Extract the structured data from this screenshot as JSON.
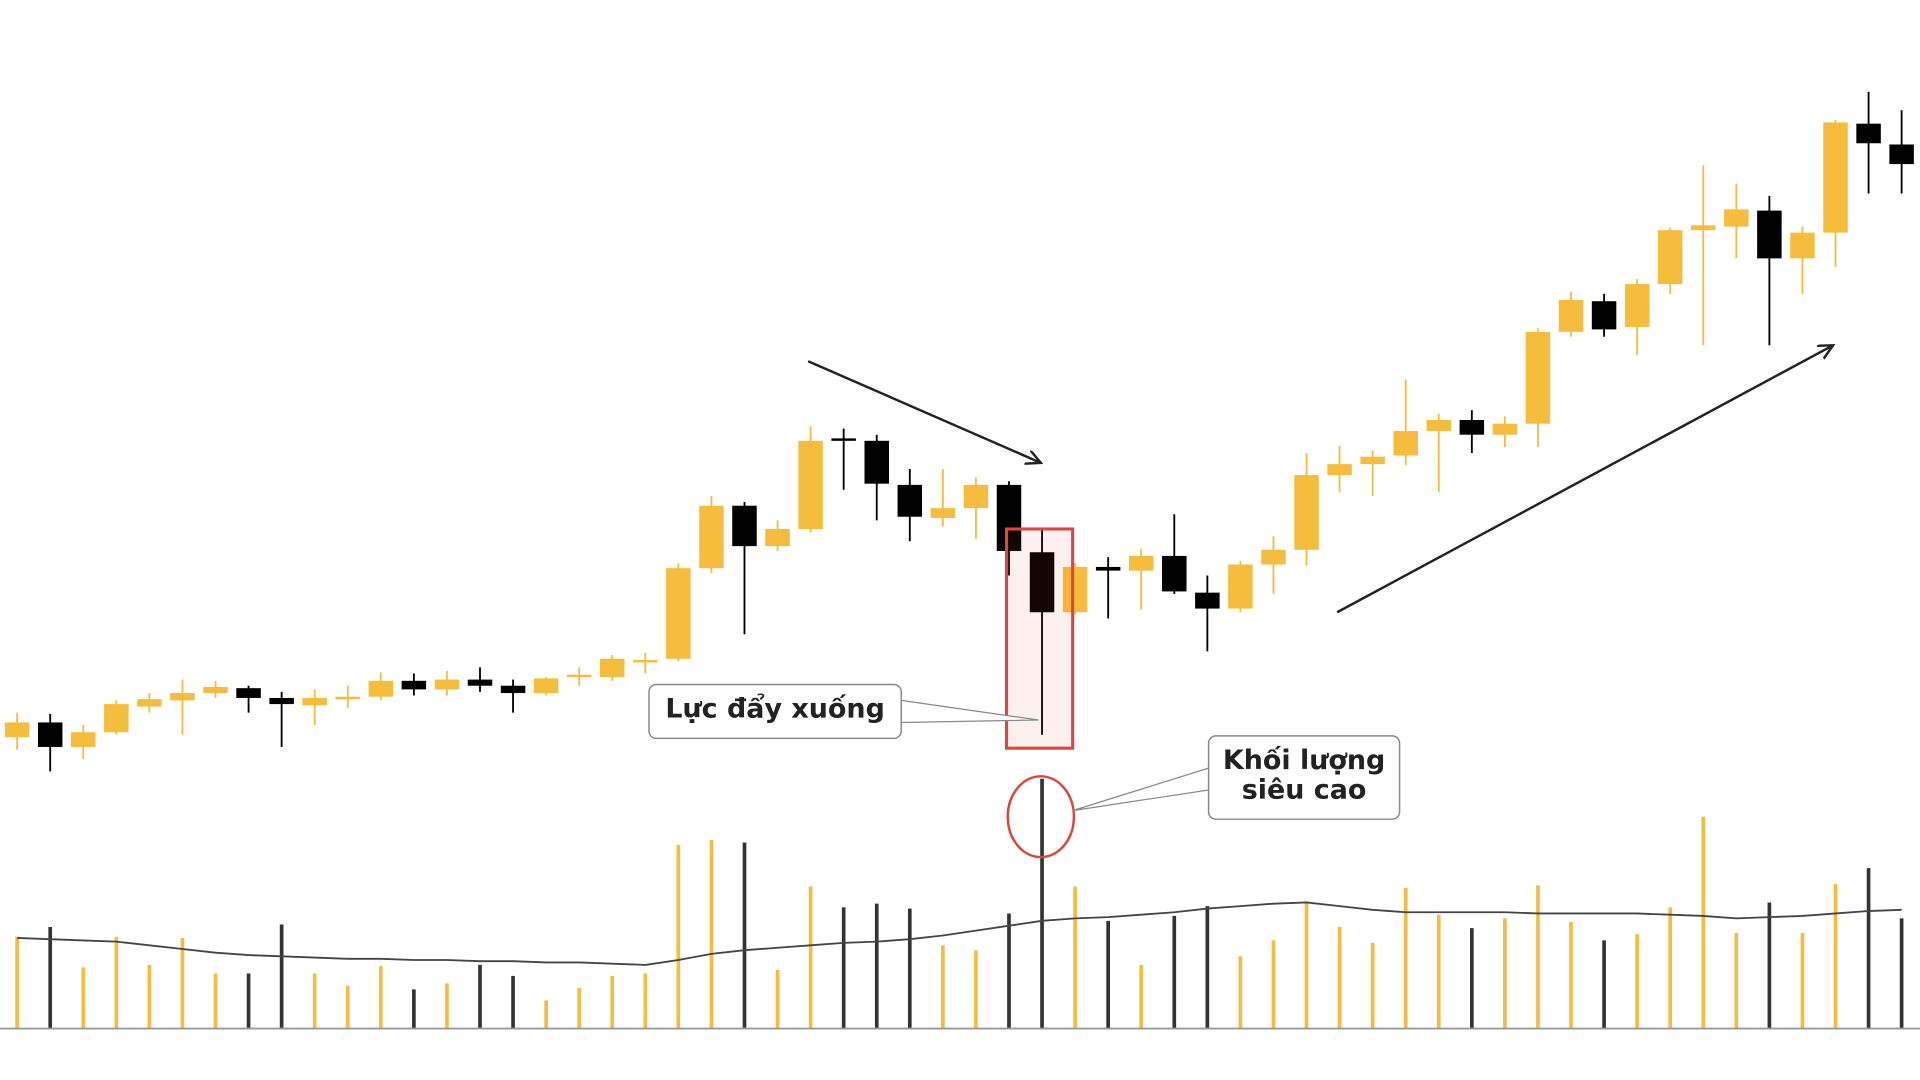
{
  "chart_data": {
    "type": "candlestick",
    "up_color": "#f5bd3b",
    "down_color": "#000000",
    "ma_color": "#444444",
    "ylim": [
      0,
      700
    ],
    "volume_ylim": [
      0,
      840
    ],
    "open": [
      98,
      110,
      90,
      102,
      123,
      128,
      134,
      138,
      130,
      124,
      129,
      131,
      144,
      137,
      145,
      140,
      134,
      147,
      147,
      159,
      162,
      236,
      287,
      254,
      268,
      342,
      340,
      304,
      277,
      285,
      304,
      249,
      200,
      237,
      234,
      246,
      216,
      203,
      239,
      251,
      312,
      321,
      328,
      348,
      357,
      345,
      354,
      429,
      454,
      433,
      468,
      512,
      515,
      528,
      489,
      510,
      599,
      582
    ],
    "high": [
      118,
      117,
      108,
      128,
      134,
      145,
      144,
      140,
      135,
      137,
      140,
      151,
      150,
      152,
      155,
      145,
      147,
      155,
      165,
      167,
      240,
      295,
      290,
      275,
      352,
      350,
      345,
      317,
      317,
      310,
      307,
      268,
      240,
      245,
      252,
      280,
      230,
      242,
      262,
      330,
      336,
      332,
      390,
      362,
      365,
      360,
      432,
      462,
      460,
      472,
      514,
      565,
      550,
      540,
      515,
      602,
      625,
      610
    ],
    "low": [
      88,
      70,
      80,
      100,
      118,
      100,
      130,
      118,
      90,
      108,
      122,
      128,
      132,
      132,
      135,
      118,
      132,
      140,
      144,
      150,
      160,
      232,
      182,
      250,
      265,
      300,
      275,
      258,
      270,
      260,
      230,
      100,
      198,
      195,
      202,
      215,
      168,
      200,
      215,
      238,
      298,
      295,
      320,
      298,
      330,
      335,
      335,
      425,
      425,
      410,
      460,
      418,
      489,
      418,
      460,
      482,
      542,
      542
    ],
    "close": [
      110,
      90,
      102,
      125,
      129,
      134,
      139,
      130,
      125,
      130,
      131,
      144,
      137,
      145,
      140,
      134,
      146,
      149,
      162,
      161,
      236,
      287,
      254,
      268,
      340,
      340,
      305,
      278,
      285,
      304,
      250,
      200,
      237,
      234,
      246,
      217,
      203,
      239,
      251,
      312,
      321,
      327,
      348,
      357,
      345,
      354,
      429,
      455,
      431,
      468,
      512,
      516,
      529,
      489,
      510,
      600,
      583,
      566
    ],
    "volume": [
      75,
      83,
      50,
      75,
      52,
      74,
      45,
      45,
      85,
      45,
      35,
      51,
      32,
      37,
      52,
      43,
      23,
      33,
      43,
      45,
      150,
      154,
      152,
      48,
      116,
      99,
      102,
      98,
      68,
      64,
      94,
      204,
      116,
      88,
      52,
      92,
      100,
      59,
      72,
      104,
      83,
      70,
      115,
      93,
      82,
      90,
      117,
      87,
      72,
      77,
      99,
      173,
      78,
      103,
      78,
      118,
      131,
      90
    ],
    "volume_ma": [
      74,
      73,
      72,
      71,
      68,
      65,
      62,
      60,
      59,
      58,
      57,
      57,
      56,
      56,
      55,
      55,
      54,
      54,
      53,
      52,
      56,
      61,
      64,
      66,
      68,
      70,
      71,
      73,
      76,
      80,
      84,
      88,
      90,
      91,
      93,
      95,
      98,
      100,
      102,
      103,
      100,
      97,
      95,
      95,
      95,
      95,
      94,
      94,
      94,
      94,
      93,
      92,
      90,
      91,
      92,
      94,
      96,
      97
    ],
    "annotations": [
      [
        "Lực đẩy xuống"
      ],
      [
        "Khối lượng",
        "siêu cao"
      ]
    ]
  }
}
